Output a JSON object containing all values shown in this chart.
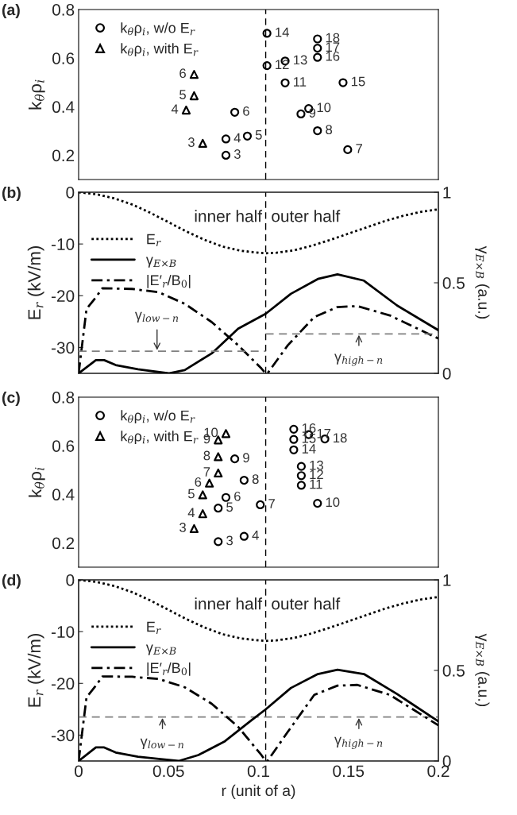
{
  "chart_data": [
    {
      "type": "scatter",
      "title": "(a)",
      "ylabel": "k$_{θ}$ρ$_{i}$",
      "xlim": [
        0,
        0.2
      ],
      "xticks": [
        0,
        0.05,
        0.1,
        0.15,
        0.2
      ],
      "ylim": [
        0.1,
        0.8
      ],
      "yticks": [
        0.2,
        0.4,
        0.6,
        0.8
      ],
      "tick_labels": "y",
      "legend": "top left",
      "ref_lines": [
        {
          "axis": "x",
          "value": 0.104,
          "color": "#000000",
          "line_style": "dashed"
        }
      ],
      "series": [
        {
          "name": "k$_{θ}$ρ$_{i}$, w/o E$_{r}$",
          "color": "#000000",
          "marker": "circle",
          "x": [
            0.0819,
            0.0819,
            0.0938,
            0.0868,
            0.1496,
            0.1328,
            0.1236,
            0.1279,
            0.1148,
            0.1047,
            0.1148,
            0.1047,
            0.147,
            0.1328,
            0.1328,
            0.1328
          ],
          "values": [
            0.2,
            0.267,
            0.279,
            0.377,
            0.223,
            0.301,
            0.37,
            0.392,
            0.498,
            0.569,
            0.588,
            0.702,
            0.499,
            0.603,
            0.641,
            0.679
          ]
        },
        {
          "name": "k$_{θ}$ρ$_{i}$, with E$_{r}$",
          "color": "#000000",
          "marker": "triangle",
          "x": [
            0.069,
            0.0598,
            0.0642,
            0.0642
          ],
          "values": [
            0.249,
            0.386,
            0.445,
            0.533
          ]
        }
      ],
      "annotations": [
        {
          "text": "3",
          "x": 0.0819,
          "y": 0.2
        },
        {
          "text": "4",
          "x": 0.0819,
          "y": 0.267
        },
        {
          "text": "5",
          "x": 0.0938,
          "y": 0.279
        },
        {
          "text": "6",
          "x": 0.0868,
          "y": 0.377
        },
        {
          "text": "7",
          "x": 0.1496,
          "y": 0.223
        },
        {
          "text": "8",
          "x": 0.1328,
          "y": 0.301
        },
        {
          "text": "9",
          "x": 0.1236,
          "y": 0.37
        },
        {
          "text": "10",
          "x": 0.1279,
          "y": 0.392
        },
        {
          "text": "11",
          "x": 0.1148,
          "y": 0.498
        },
        {
          "text": "12",
          "x": 0.1047,
          "y": 0.569
        },
        {
          "text": "13",
          "x": 0.1148,
          "y": 0.588
        },
        {
          "text": "14",
          "x": 0.1047,
          "y": 0.702
        },
        {
          "text": "15",
          "x": 0.147,
          "y": 0.499
        },
        {
          "text": "16",
          "x": 0.1328,
          "y": 0.603
        },
        {
          "text": "17",
          "x": 0.1328,
          "y": 0.641
        },
        {
          "text": "18",
          "x": 0.1328,
          "y": 0.679
        },
        {
          "text": "3",
          "x": 0.069,
          "y": 0.249
        },
        {
          "text": "4",
          "x": 0.0598,
          "y": 0.386
        },
        {
          "text": "5",
          "x": 0.0642,
          "y": 0.445
        },
        {
          "text": "6",
          "x": 0.0642,
          "y": 0.533
        }
      ]
    },
    {
      "type": "line",
      "title": "(b)",
      "ylabel": "E$_{r}$ (kV/m)",
      "y2label": "γ$_{E×B}$ (a.u.)",
      "xlim": [
        0,
        0.2
      ],
      "xticks": [
        0,
        0.05,
        0.1,
        0.15,
        0.2
      ],
      "ylim": [
        -35,
        0
      ],
      "yticks": [
        -30,
        -20,
        -10,
        0
      ],
      "y2lim": [
        0,
        1
      ],
      "y2ticks": [
        0,
        0.5,
        1
      ],
      "tick_labels": "y",
      "legend": "left",
      "ref_lines": [
        {
          "axis": "x",
          "value": 0.104,
          "color": "#000000",
          "line_style": "dashed"
        }
      ],
      "series": [
        {
          "name": "E$_{r}$",
          "color": "#000000",
          "line_style": "dotted",
          "x": [
            0,
            0.01,
            0.02,
            0.03,
            0.04,
            0.05,
            0.06,
            0.07,
            0.08,
            0.09,
            0.1,
            0.104,
            0.11,
            0.12,
            0.13,
            0.14,
            0.15,
            0.16,
            0.17,
            0.18,
            0.19,
            0.2
          ],
          "values": [
            0,
            -0.4,
            -1.2,
            -2.4,
            -4,
            -5.8,
            -7.6,
            -9.2,
            -10.5,
            -11.3,
            -11.7,
            -11.8,
            -11.7,
            -11.2,
            -10.3,
            -9.2,
            -8,
            -6.8,
            -5.6,
            -4.6,
            -3.8,
            -3.3
          ]
        },
        {
          "name": "γ$_{E×B}$",
          "color": "#000000",
          "line_style": "solid",
          "axis": "y2",
          "x": [
            0,
            0.0096,
            0.0142,
            0.0206,
            0.033,
            0.05,
            0.059,
            0.074,
            0.0887,
            0.104,
            0.118,
            0.133,
            0.1439,
            0.1586,
            0.177,
            0.2
          ],
          "values": [
            0,
            0.073,
            0.073,
            0.046,
            0.022,
            0,
            0.018,
            0.11,
            0.247,
            0.329,
            0.439,
            0.521,
            0.547,
            0.512,
            0.375,
            0.238
          ]
        },
        {
          "name": "|E′$_{r}$/B$_{0}$|",
          "color": "#000000",
          "line_style": "dashdot",
          "axis": "y2",
          "x": [
            0,
            0.0044,
            0.0096,
            0.0132,
            0.0298,
            0.0445,
            0.059,
            0.074,
            0.0887,
            0.1016,
            0.104,
            0.105,
            0.1163,
            0.131,
            0.1439,
            0.155,
            0.173,
            0.2
          ],
          "values": [
            0,
            0.356,
            0.42,
            0.47,
            0.466,
            0.448,
            0.384,
            0.283,
            0.155,
            0.027,
            0,
            0,
            0.155,
            0.311,
            0.366,
            0.371,
            0.32,
            0.192
          ]
        },
        {
          "color": "#808080",
          "line_style": "dashed",
          "axis": "y2",
          "x": [
            0,
            0.104
          ],
          "values": [
            0.122,
            0.122
          ]
        },
        {
          "color": "#808080",
          "line_style": "dashed",
          "axis": "y2",
          "x": [
            0.104,
            0.2
          ],
          "values": [
            0.218,
            0.218
          ]
        }
      ],
      "annotations": [
        "inner half",
        "outer half",
        {
          "text": "γ$_{low−n}$",
          "x": 0.0436,
          "y": -30.73
        },
        {
          "text": "γ$_{high−n}$",
          "x": 0.1558,
          "y": -27.37
        }
      ]
    },
    {
      "type": "scatter",
      "title": "(c)",
      "ylabel": "k$_{θ}$ρ$_{i}$",
      "xlim": [
        0,
        0.2
      ],
      "xticks": [
        0,
        0.05,
        0.1,
        0.15,
        0.2
      ],
      "ylim": [
        0.1,
        0.8
      ],
      "yticks": [
        0.2,
        0.4,
        0.6,
        0.8
      ],
      "tick_labels": "y",
      "legend": "top left",
      "ref_lines": [
        {
          "axis": "x",
          "value": 0.104,
          "color": "#000000",
          "line_style": "dashed"
        }
      ],
      "series": [
        {
          "name": "k$_{θ}$ρ$_{i}$, w/o E$_{r}$",
          "color": "#000000",
          "marker": "circle",
          "x": [
            0.0776,
            0.092,
            0.0776,
            0.0819,
            0.101,
            0.092,
            0.0868,
            0.1328,
            0.1238,
            0.1238,
            0.1238,
            0.1196,
            0.1196,
            0.1196,
            0.1279,
            0.1369
          ],
          "values": [
            0.205,
            0.227,
            0.343,
            0.387,
            0.357,
            0.458,
            0.546,
            0.363,
            0.437,
            0.477,
            0.515,
            0.583,
            0.626,
            0.668,
            0.646,
            0.628
          ]
        },
        {
          "name": "k$_{θ}$ρ$_{i}$, with E$_{r}$",
          "color": "#000000",
          "marker": "triangle",
          "x": [
            0.0642,
            0.069,
            0.069,
            0.0727,
            0.0776,
            0.0776,
            0.0776,
            0.0819
          ],
          "values": [
            0.259,
            0.32,
            0.398,
            0.446,
            0.488,
            0.555,
            0.624,
            0.65
          ]
        }
      ],
      "annotations": [
        {
          "text": "3",
          "x": 0.0776,
          "y": 0.205
        },
        {
          "text": "4",
          "x": 0.092,
          "y": 0.227
        },
        {
          "text": "5",
          "x": 0.0776,
          "y": 0.343
        },
        {
          "text": "6",
          "x": 0.0819,
          "y": 0.387
        },
        {
          "text": "7",
          "x": 0.101,
          "y": 0.357
        },
        {
          "text": "8",
          "x": 0.092,
          "y": 0.458
        },
        {
          "text": "9",
          "x": 0.0868,
          "y": 0.546
        },
        {
          "text": "10",
          "x": 0.1328,
          "y": 0.363
        },
        {
          "text": "11",
          "x": 0.1238,
          "y": 0.437
        },
        {
          "text": "12",
          "x": 0.1238,
          "y": 0.477
        },
        {
          "text": "13",
          "x": 0.1238,
          "y": 0.515
        },
        {
          "text": "14",
          "x": 0.1196,
          "y": 0.583
        },
        {
          "text": "15",
          "x": 0.1196,
          "y": 0.626
        },
        {
          "text": "16",
          "x": 0.1196,
          "y": 0.668
        },
        {
          "text": "17",
          "x": 0.1279,
          "y": 0.646
        },
        {
          "text": "18",
          "x": 0.1369,
          "y": 0.628
        },
        {
          "text": "3",
          "x": 0.0642,
          "y": 0.259
        },
        {
          "text": "4",
          "x": 0.069,
          "y": 0.32
        },
        {
          "text": "5",
          "x": 0.069,
          "y": 0.398
        },
        {
          "text": "6",
          "x": 0.0727,
          "y": 0.446
        },
        {
          "text": "7",
          "x": 0.0776,
          "y": 0.488
        },
        {
          "text": "8",
          "x": 0.0776,
          "y": 0.555
        },
        {
          "text": "9",
          "x": 0.0776,
          "y": 0.624
        },
        {
          "text": "10",
          "x": 0.0819,
          "y": 0.65
        }
      ]
    },
    {
      "type": "line",
      "title": "(d)",
      "xlabel": "r (unit of a)",
      "ylabel": "E$_{r}$ (kV/m)",
      "y2label": "γ$_{E×B}$ (a.u.)",
      "xlim": [
        0,
        0.2
      ],
      "xticks": [
        0,
        0.05,
        0.1,
        0.15,
        0.2
      ],
      "ylim": [
        -35,
        0
      ],
      "yticks": [
        -30,
        -20,
        -10,
        0
      ],
      "y2lim": [
        0,
        1
      ],
      "y2ticks": [
        0,
        0.5,
        1
      ],
      "legend": "left",
      "ref_lines": [
        {
          "axis": "x",
          "value": 0.104,
          "color": "#000000",
          "line_style": "dashed"
        },
        {
          "axis": "y2",
          "value": 0.243,
          "color": "#808080",
          "line_style": "dashed"
        }
      ],
      "series": [
        {
          "name": "E$_{r}$",
          "color": "#000000",
          "line_style": "dotted",
          "x": [
            0,
            0.01,
            0.02,
            0.03,
            0.04,
            0.05,
            0.06,
            0.07,
            0.08,
            0.09,
            0.1,
            0.104,
            0.11,
            0.12,
            0.13,
            0.14,
            0.15,
            0.16,
            0.17,
            0.18,
            0.19,
            0.2
          ],
          "values": [
            0,
            -0.4,
            -1.2,
            -2.4,
            -4,
            -5.8,
            -7.6,
            -9.2,
            -10.5,
            -11.3,
            -11.7,
            -11.8,
            -11.7,
            -11.2,
            -10.3,
            -9.2,
            -8,
            -6.8,
            -5.6,
            -4.6,
            -3.8,
            -3.3
          ]
        },
        {
          "name": "γ$_{E×B}$",
          "color": "#000000",
          "line_style": "solid",
          "axis": "y2",
          "x": [
            0,
            0.0096,
            0.0142,
            0.0206,
            0.033,
            0.0445,
            0.0556,
            0.0666,
            0.0813,
            0.096,
            0.104,
            0.118,
            0.133,
            0.1439,
            0.1586,
            0.177,
            0.2
          ],
          "values": [
            0,
            0.075,
            0.075,
            0.047,
            0.024,
            0.011,
            0,
            0.033,
            0.109,
            0.224,
            0.285,
            0.403,
            0.48,
            0.504,
            0.48,
            0.37,
            0.219
          ]
        },
        {
          "name": "|E′$_{r}$/B$_{0}$|",
          "color": "#000000",
          "line_style": "dashdot",
          "axis": "y2",
          "x": [
            0,
            0.0044,
            0.0096,
            0.0132,
            0.0298,
            0.0445,
            0.059,
            0.074,
            0.0887,
            0.1016,
            0.104,
            0.105,
            0.1163,
            0.131,
            0.1439,
            0.155,
            0.173,
            0.2
          ],
          "values": [
            0,
            0.352,
            0.416,
            0.467,
            0.465,
            0.453,
            0.407,
            0.316,
            0.188,
            0.033,
            0,
            0,
            0.161,
            0.365,
            0.416,
            0.42,
            0.365,
            0.197
          ]
        }
      ],
      "annotations": [
        "inner half",
        "outer half",
        {
          "text": "γ$_{low−n}$",
          "x": 0.0466,
          "y": -26.5
        },
        {
          "text": "γ$_{high−n}$",
          "x": 0.1558,
          "y": -26.5
        }
      ]
    }
  ]
}
